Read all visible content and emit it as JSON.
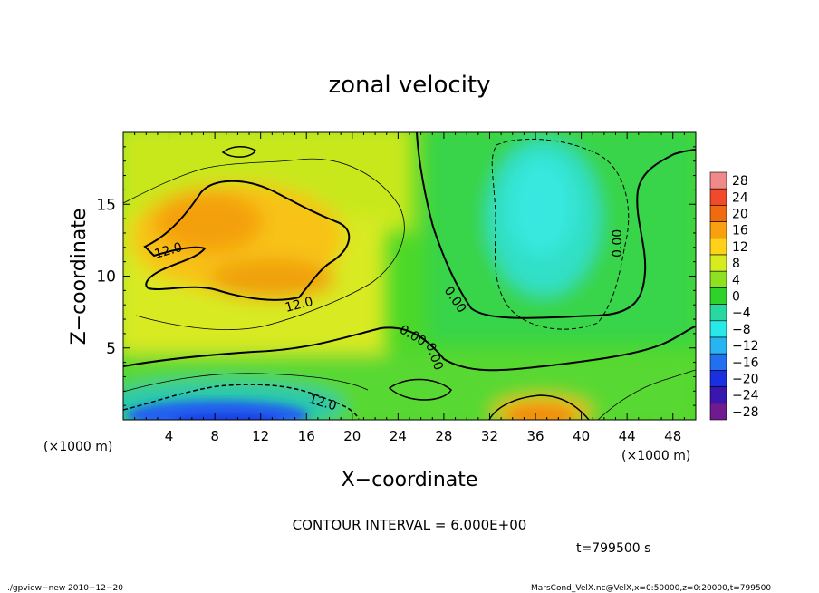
{
  "chart_data": {
    "type": "heatmap",
    "title": "zonal velocity",
    "xlabel": "X−coordinate",
    "ylabel": "Z−coordinate",
    "x_unit_left": "(×1000 m)",
    "x_unit_right": "(×1000 m)",
    "xlim": [
      0,
      50
    ],
    "ylim": [
      0,
      20
    ],
    "x_ticks": [
      4,
      8,
      12,
      16,
      20,
      24,
      28,
      32,
      36,
      40,
      44,
      48
    ],
    "x_tick_labels": [
      "4",
      "8",
      "12",
      "16",
      "20",
      "24",
      "28",
      "32",
      "36",
      "40",
      "44",
      "48"
    ],
    "y_ticks": [
      5,
      10,
      15
    ],
    "y_tick_labels": [
      "5",
      "10",
      "15"
    ],
    "colorbar": {
      "levels": [
        28,
        24,
        20,
        16,
        12,
        8,
        4,
        0,
        -4,
        -8,
        -12,
        -16,
        -20,
        -24,
        -28
      ],
      "labels": [
        "28",
        "24",
        "20",
        "16",
        "12",
        "8",
        "4",
        "0",
        "−4",
        "−8",
        "−12",
        "−16",
        "−20",
        "−24",
        "−28"
      ],
      "colors": [
        "#f08a8a",
        "#f04a2a",
        "#f06a10",
        "#f8a010",
        "#ffd21a",
        "#d6ec20",
        "#8ee020",
        "#2ed22a",
        "#28d8a0",
        "#28e8e8",
        "#28b4f0",
        "#2070f0",
        "#1a30e0",
        "#3a16b0",
        "#701a90"
      ]
    },
    "contour_interval_text": "CONTOUR INTERVAL = 6.000E+00",
    "contour_labels": [
      "12.0",
      "12.0",
      "12.0",
      "0.00",
      "0.00",
      "0.00",
      "0.00"
    ],
    "time_text": "t=799500  s",
    "grid": false
  },
  "footer": {
    "left": "./gpview−new   2010−12−20",
    "right": "MarsCond_VelX.nc@VelX,x=0:50000,z=0:20000,t=799500"
  }
}
